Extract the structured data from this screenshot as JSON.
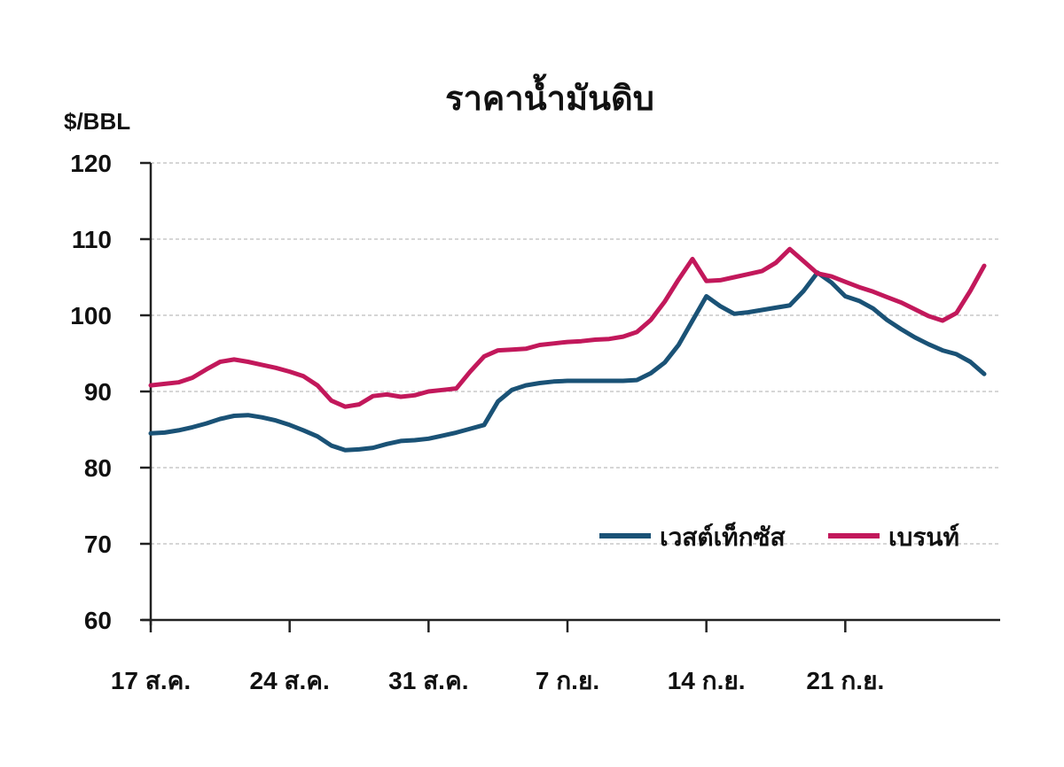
{
  "chart_data": {
    "type": "line",
    "title": "ราคาน้ำมันดิบ",
    "ylabel": "$/BBL",
    "ylim": [
      60,
      120
    ],
    "yticks": [
      60,
      70,
      80,
      90,
      100,
      110,
      120
    ],
    "grid": true,
    "legend_position": "lower-right",
    "x_day_labels": [
      "17 ส.ค.",
      "24 ส.ค.",
      "31 ส.ค.",
      "7 ก.ย.",
      "14 ก.ย.",
      "21 ก.ย."
    ],
    "x_day_positions": [
      0,
      7,
      14,
      21,
      28,
      35
    ],
    "series": [
      {
        "name": "เวสต์เท็กซัส",
        "color": "#1a5276",
        "x": [
          0,
          0.7,
          1.4,
          2.1,
          2.8,
          3.5,
          4.2,
          4.9,
          5.6,
          6.3,
          7,
          7.7,
          8.4,
          9.1,
          9.8,
          10.5,
          11.2,
          11.9,
          12.6,
          13.3,
          14,
          14.7,
          15.4,
          16.1,
          16.8,
          17.5,
          18.2,
          18.9,
          19.6,
          20.3,
          21,
          21.7,
          22.4,
          23.1,
          23.8,
          24.5,
          25.2,
          25.9,
          26.6,
          27.3,
          28,
          28.7,
          29.4,
          30.1,
          30.8,
          31.5,
          32.2,
          32.9,
          33.6,
          34.3,
          35,
          35.7,
          36.4,
          37.1,
          37.8,
          38.5,
          39.2,
          39.9,
          40.6,
          41.3,
          42
        ],
        "values": [
          84.5,
          84.6,
          84.9,
          85.3,
          85.8,
          86.4,
          86.8,
          86.9,
          86.6,
          86.2,
          85.6,
          84.9,
          84.1,
          82.9,
          82.3,
          82.4,
          82.6,
          83.1,
          83.5,
          83.6,
          83.8,
          84.2,
          84.6,
          85.1,
          85.6,
          88.7,
          90.2,
          90.8,
          91.1,
          91.3,
          91.4,
          91.4,
          91.4,
          91.4,
          91.4,
          91.5,
          92.4,
          93.8,
          96.1,
          99.3,
          102.5,
          101.2,
          100.2,
          100.4,
          100.7,
          101,
          101.3,
          103.2,
          105.6,
          104.3,
          102.5,
          101.9,
          100.9,
          99.4,
          98.2,
          97.1,
          96.2,
          95.4,
          94.9,
          93.9,
          92.3
        ]
      },
      {
        "name": "เบรนท์",
        "color": "#c2185b",
        "x": [
          0,
          0.7,
          1.4,
          2.1,
          2.8,
          3.5,
          4.2,
          4.9,
          5.6,
          6.3,
          7,
          7.7,
          8.4,
          9.1,
          9.8,
          10.5,
          11.2,
          11.9,
          12.6,
          13.3,
          14,
          14.7,
          15.4,
          16.1,
          16.8,
          17.5,
          18.2,
          18.9,
          19.6,
          20.3,
          21,
          21.7,
          22.4,
          23.1,
          23.8,
          24.5,
          25.2,
          25.9,
          26.6,
          27.3,
          28,
          28.7,
          29.4,
          30.1,
          30.8,
          31.5,
          32.2,
          32.9,
          33.6,
          34.3,
          35,
          35.7,
          36.4,
          37.1,
          37.8,
          38.5,
          39.2,
          39.9,
          40.6,
          41.3,
          42
        ],
        "values": [
          90.8,
          91,
          91.2,
          91.8,
          92.9,
          93.9,
          94.2,
          93.9,
          93.5,
          93.1,
          92.6,
          92,
          90.8,
          88.8,
          88,
          88.3,
          89.4,
          89.6,
          89.3,
          89.5,
          90,
          90.2,
          90.4,
          92.6,
          94.6,
          95.4,
          95.5,
          95.6,
          96.1,
          96.3,
          96.5,
          96.6,
          96.8,
          96.9,
          97.2,
          97.8,
          99.4,
          101.8,
          104.7,
          107.4,
          104.5,
          104.6,
          105,
          105.4,
          105.8,
          106.9,
          108.7,
          107.1,
          105.5,
          105.1,
          104.4,
          103.7,
          103.1,
          102.4,
          101.7,
          100.8,
          99.9,
          99.3,
          100.3,
          103.2,
          106.5
        ]
      }
    ]
  }
}
